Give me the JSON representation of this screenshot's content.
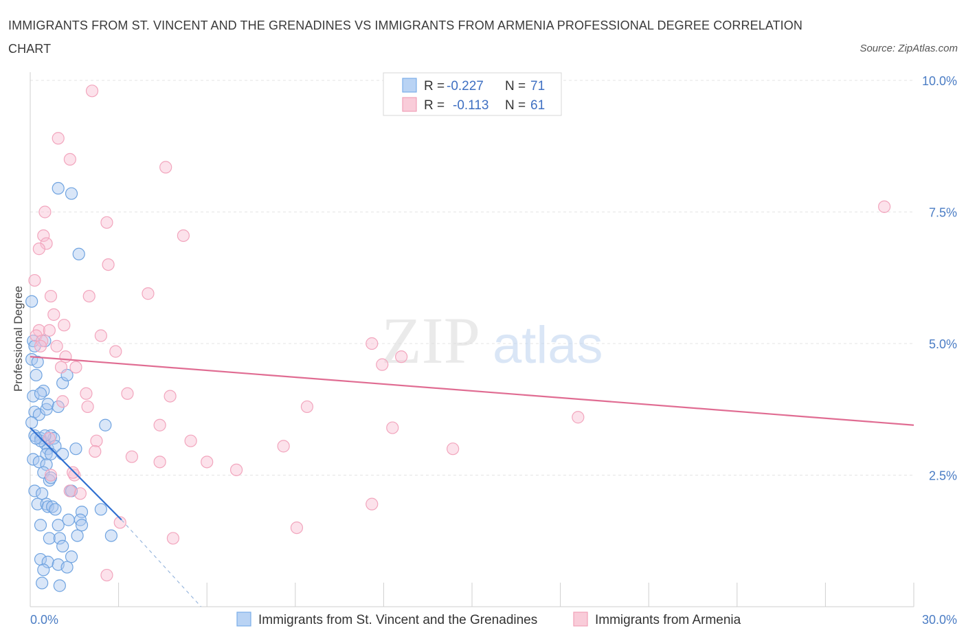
{
  "title": "IMMIGRANTS FROM ST. VINCENT AND THE GRENADINES VS IMMIGRANTS FROM ARMENIA PROFESSIONAL DEGREE CORRELATION CHART",
  "source": "Source: ZipAtlas.com",
  "watermark": {
    "zip": "ZIP",
    "atlas": "atlas"
  },
  "chart_data": {
    "type": "scatter",
    "ylabel": "Professional Degree",
    "xlim": [
      0,
      30
    ],
    "ylim": [
      0,
      10
    ],
    "x_tick_labels": [
      {
        "value": 0,
        "label": "0.0%"
      },
      {
        "value": 30,
        "label": "30.0%"
      }
    ],
    "y_tick_labels": [
      {
        "value": 2.5,
        "label": "2.5%"
      },
      {
        "value": 5.0,
        "label": "5.0%"
      },
      {
        "value": 7.5,
        "label": "7.5%"
      },
      {
        "value": 10.0,
        "label": "10.0%"
      }
    ],
    "legend": [
      {
        "r_label": "R =",
        "r_value": "-0.227",
        "n_label": "N =",
        "n_value": "71",
        "color": "#7aaee8"
      },
      {
        "r_label": "R =",
        "r_value": "-0.113",
        "n_label": "N =",
        "n_value": "61",
        "color": "#f0a0b8"
      }
    ],
    "series": [
      {
        "name": "Immigrants from St. Vincent and the Grenadines",
        "color": "#6fa3e0",
        "trend_color": "#2f6fd0",
        "trend": {
          "x0": 0.0,
          "y0": 3.4,
          "x1": 3.1,
          "y1": 1.65
        },
        "trend_extension": {
          "x0": 3.1,
          "y0": 1.65,
          "x1": 5.8,
          "y1": 0.0
        },
        "points": [
          [
            0.05,
            5.8
          ],
          [
            0.1,
            5.05
          ],
          [
            0.15,
            4.95
          ],
          [
            0.05,
            4.7
          ],
          [
            0.25,
            4.65
          ],
          [
            0.2,
            4.4
          ],
          [
            0.1,
            4.0
          ],
          [
            0.45,
            4.1
          ],
          [
            0.35,
            4.05
          ],
          [
            0.15,
            3.7
          ],
          [
            0.3,
            3.65
          ],
          [
            0.05,
            3.5
          ],
          [
            0.55,
            3.75
          ],
          [
            0.6,
            3.85
          ],
          [
            0.95,
            3.8
          ],
          [
            1.1,
            4.25
          ],
          [
            1.25,
            4.4
          ],
          [
            0.15,
            3.25
          ],
          [
            0.35,
            3.2
          ],
          [
            0.5,
            3.1
          ],
          [
            0.6,
            3.0
          ],
          [
            0.7,
            3.25
          ],
          [
            0.8,
            3.2
          ],
          [
            0.85,
            3.05
          ],
          [
            0.55,
            2.9
          ],
          [
            1.1,
            2.9
          ],
          [
            1.55,
            3.0
          ],
          [
            2.55,
            3.45
          ],
          [
            0.1,
            2.8
          ],
          [
            0.3,
            2.75
          ],
          [
            0.55,
            2.7
          ],
          [
            0.45,
            2.55
          ],
          [
            0.65,
            2.4
          ],
          [
            0.7,
            2.45
          ],
          [
            0.15,
            2.2
          ],
          [
            0.4,
            2.15
          ],
          [
            0.25,
            1.95
          ],
          [
            0.55,
            1.95
          ],
          [
            0.6,
            1.9
          ],
          [
            0.75,
            1.9
          ],
          [
            0.85,
            1.85
          ],
          [
            1.35,
            2.2
          ],
          [
            1.4,
            2.2
          ],
          [
            1.75,
            1.8
          ],
          [
            2.4,
            1.85
          ],
          [
            0.35,
            1.55
          ],
          [
            0.95,
            1.55
          ],
          [
            1.3,
            1.65
          ],
          [
            1.7,
            1.65
          ],
          [
            1.75,
            1.55
          ],
          [
            0.65,
            1.3
          ],
          [
            1.0,
            1.3
          ],
          [
            1.1,
            1.15
          ],
          [
            1.6,
            1.35
          ],
          [
            2.75,
            1.35
          ],
          [
            0.35,
            0.9
          ],
          [
            0.6,
            0.85
          ],
          [
            0.95,
            0.8
          ],
          [
            1.25,
            0.75
          ],
          [
            1.4,
            0.95
          ],
          [
            0.45,
            0.7
          ],
          [
            0.4,
            0.45
          ],
          [
            1.0,
            0.4
          ],
          [
            0.95,
            7.95
          ],
          [
            1.4,
            7.85
          ],
          [
            1.65,
            6.7
          ],
          [
            0.5,
            5.05
          ],
          [
            0.35,
            3.15
          ],
          [
            0.5,
            3.25
          ],
          [
            0.7,
            2.9
          ],
          [
            0.2,
            3.2
          ]
        ]
      },
      {
        "name": "Immigrants from Armenia",
        "color": "#f2a5bd",
        "trend_color": "#e06c92",
        "trend": {
          "x0": 0.0,
          "y0": 4.75,
          "x1": 30.0,
          "y1": 3.45
        },
        "points": [
          [
            2.1,
            9.8
          ],
          [
            0.95,
            8.9
          ],
          [
            1.35,
            8.5
          ],
          [
            4.6,
            8.35
          ],
          [
            0.5,
            7.5
          ],
          [
            2.6,
            7.3
          ],
          [
            5.2,
            7.05
          ],
          [
            0.45,
            7.05
          ],
          [
            0.55,
            6.9
          ],
          [
            0.3,
            6.8
          ],
          [
            2.65,
            6.5
          ],
          [
            0.15,
            6.2
          ],
          [
            0.7,
            5.9
          ],
          [
            2.0,
            5.9
          ],
          [
            4.0,
            5.95
          ],
          [
            0.8,
            5.55
          ],
          [
            1.15,
            5.35
          ],
          [
            0.3,
            5.25
          ],
          [
            0.65,
            5.25
          ],
          [
            0.2,
            5.15
          ],
          [
            0.4,
            5.05
          ],
          [
            0.35,
            4.95
          ],
          [
            0.9,
            4.95
          ],
          [
            2.4,
            5.15
          ],
          [
            2.9,
            4.85
          ],
          [
            11.6,
            5.0
          ],
          [
            11.95,
            4.6
          ],
          [
            12.6,
            4.75
          ],
          [
            1.2,
            4.75
          ],
          [
            1.05,
            4.55
          ],
          [
            1.55,
            4.55
          ],
          [
            1.9,
            4.05
          ],
          [
            1.95,
            3.8
          ],
          [
            3.3,
            4.05
          ],
          [
            4.75,
            4.0
          ],
          [
            1.1,
            3.9
          ],
          [
            9.4,
            3.8
          ],
          [
            3.45,
            2.85
          ],
          [
            4.4,
            3.45
          ],
          [
            5.45,
            3.15
          ],
          [
            6.0,
            2.75
          ],
          [
            7.0,
            2.6
          ],
          [
            8.6,
            3.05
          ],
          [
            12.3,
            3.4
          ],
          [
            14.35,
            3.0
          ],
          [
            18.6,
            3.6
          ],
          [
            29.0,
            7.6
          ],
          [
            0.65,
            3.2
          ],
          [
            2.25,
            3.15
          ],
          [
            2.2,
            2.95
          ],
          [
            1.5,
            2.5
          ],
          [
            1.45,
            2.55
          ],
          [
            1.35,
            2.2
          ],
          [
            1.7,
            2.15
          ],
          [
            4.4,
            2.75
          ],
          [
            3.05,
            1.6
          ],
          [
            9.05,
            1.5
          ],
          [
            11.6,
            1.95
          ],
          [
            4.85,
            1.3
          ],
          [
            2.6,
            0.6
          ],
          [
            0.7,
            2.5
          ]
        ]
      }
    ]
  }
}
